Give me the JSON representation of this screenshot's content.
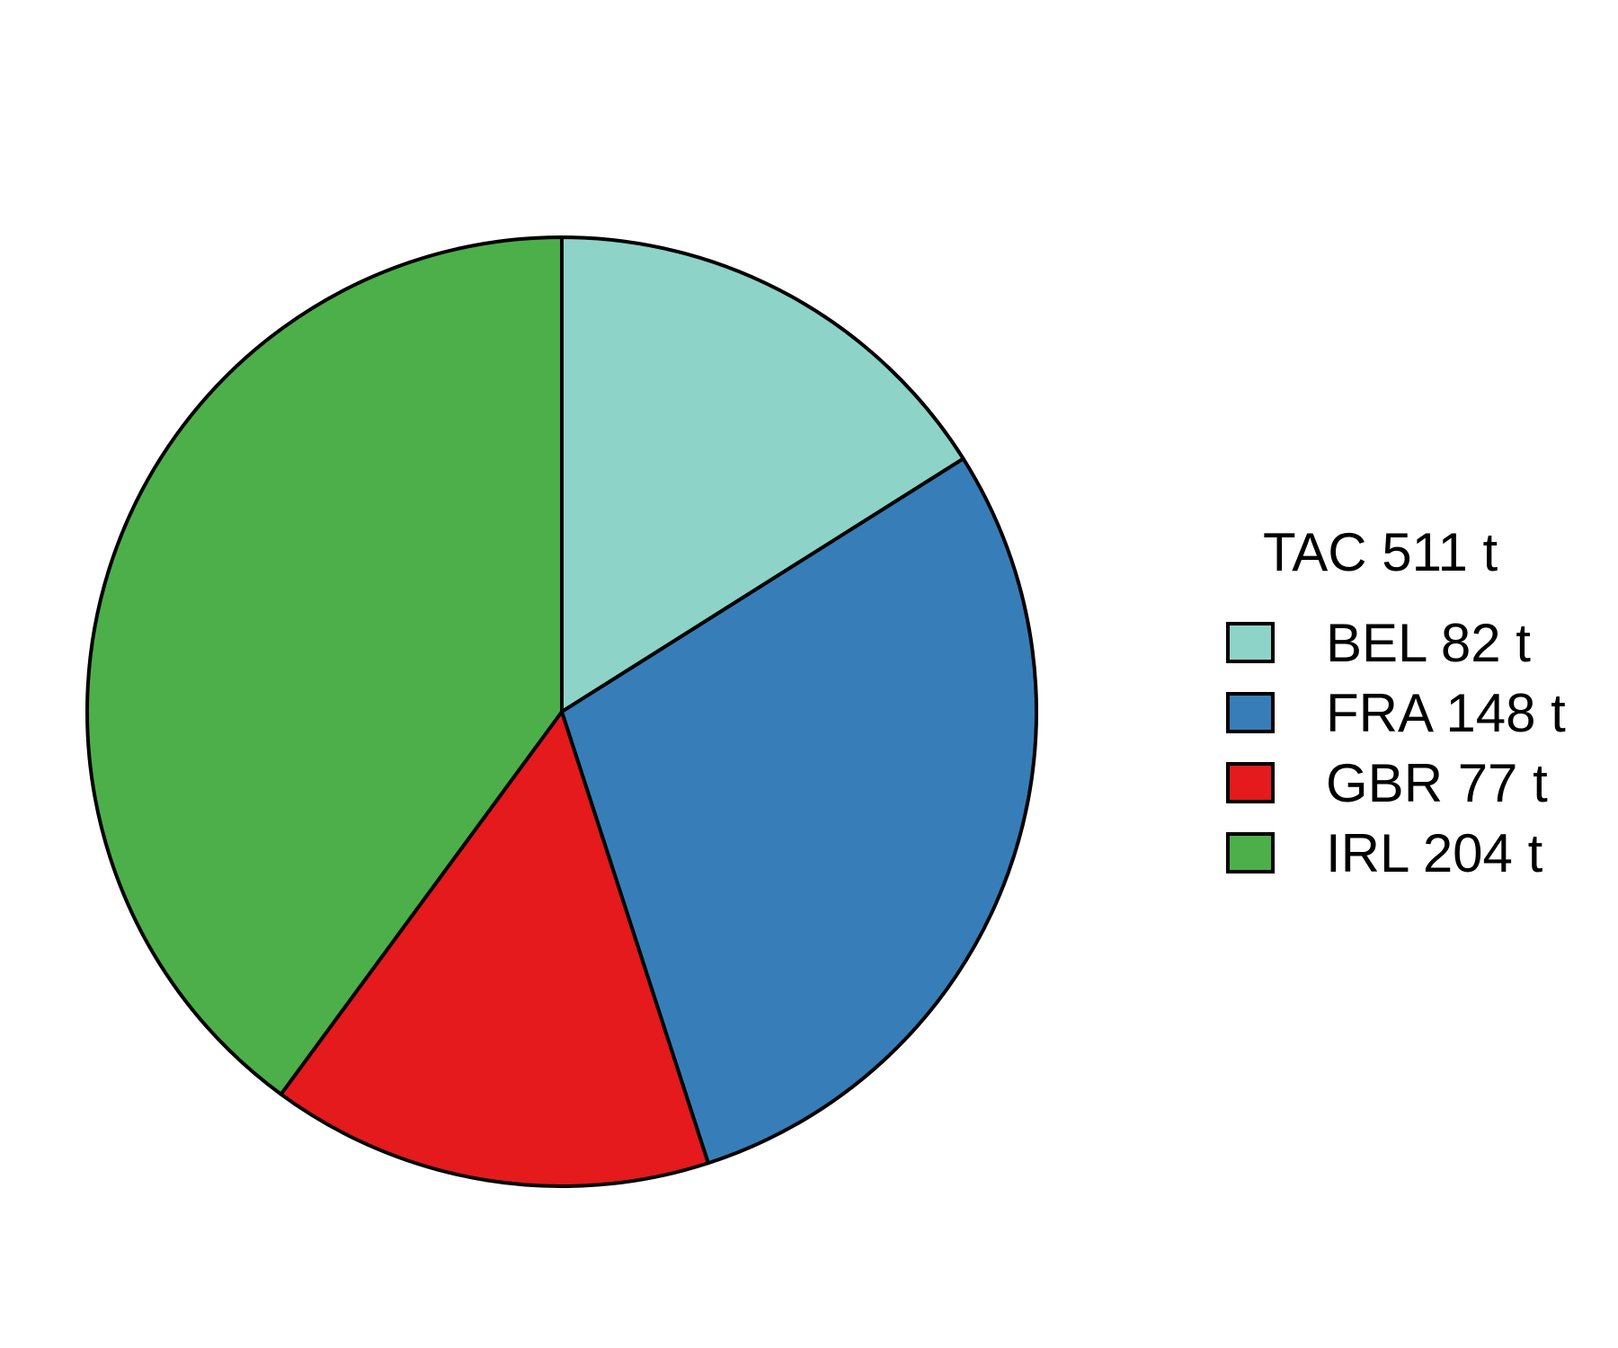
{
  "chart_data": {
    "type": "pie",
    "title": "",
    "legend_title": "TAC 511 t",
    "legend_position": "right",
    "start": "12 o'clock",
    "direction": "clockwise",
    "slices": [
      {
        "label": "BEL 82 t",
        "category": "BEL",
        "value": 82,
        "color": "#8ED3C7"
      },
      {
        "label": "FRA 148 t",
        "category": "FRA",
        "value": 148,
        "color": "#377EB8"
      },
      {
        "label": "GBR 77 t",
        "category": "GBR",
        "value": 77,
        "color": "#E41A1C"
      },
      {
        "label": "IRL 204 t",
        "category": "IRL",
        "value": 204,
        "color": "#4DAF4A"
      }
    ]
  }
}
